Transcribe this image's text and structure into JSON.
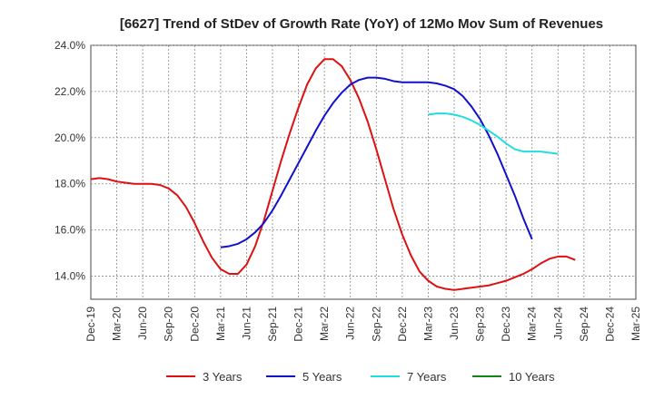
{
  "chart_data": {
    "type": "line",
    "title": "[6627]  Trend of StDev of Growth Rate (YoY) of 12Mo Mov Sum of Revenues",
    "xlabel": "",
    "ylabel": "",
    "ylim": [
      13.0,
      24.0
    ],
    "y_ticks": [
      14.0,
      16.0,
      18.0,
      20.0,
      22.0,
      24.0
    ],
    "y_tick_labels": [
      "14.0%",
      "16.0%",
      "18.0%",
      "20.0%",
      "22.0%",
      "24.0%"
    ],
    "x_tick_labels": [
      "Dec-19",
      "Mar-20",
      "Jun-20",
      "Sep-20",
      "Dec-20",
      "Mar-21",
      "Jun-21",
      "Sep-21",
      "Dec-21",
      "Mar-22",
      "Jun-22",
      "Sep-22",
      "Dec-22",
      "Mar-23",
      "Jun-23",
      "Sep-23",
      "Dec-23",
      "Mar-24",
      "Jun-24",
      "Sep-24",
      "Dec-24",
      "Mar-25"
    ],
    "x_start": "Dec-19",
    "x_months": 63,
    "grid": true,
    "legend_position": "bottom",
    "series": [
      {
        "name": "3 Years",
        "color": "#dd1111",
        "points": [
          [
            0,
            18.2
          ],
          [
            1,
            18.25
          ],
          [
            2,
            18.2
          ],
          [
            3,
            18.1
          ],
          [
            4,
            18.05
          ],
          [
            5,
            18.0
          ],
          [
            6,
            18.0
          ],
          [
            7,
            18.0
          ],
          [
            8,
            17.95
          ],
          [
            9,
            17.8
          ],
          [
            10,
            17.5
          ],
          [
            11,
            17.0
          ],
          [
            12,
            16.3
          ],
          [
            13,
            15.5
          ],
          [
            14,
            14.8
          ],
          [
            15,
            14.3
          ],
          [
            16,
            14.1
          ],
          [
            17,
            14.1
          ],
          [
            18,
            14.5
          ],
          [
            19,
            15.3
          ],
          [
            20,
            16.4
          ],
          [
            21,
            17.7
          ],
          [
            22,
            19.0
          ],
          [
            23,
            20.2
          ],
          [
            24,
            21.3
          ],
          [
            25,
            22.3
          ],
          [
            26,
            23.0
          ],
          [
            27,
            23.4
          ],
          [
            28,
            23.4
          ],
          [
            29,
            23.1
          ],
          [
            30,
            22.5
          ],
          [
            31,
            21.7
          ],
          [
            32,
            20.7
          ],
          [
            33,
            19.5
          ],
          [
            34,
            18.2
          ],
          [
            35,
            16.9
          ],
          [
            36,
            15.8
          ],
          [
            37,
            14.9
          ],
          [
            38,
            14.2
          ],
          [
            39,
            13.8
          ],
          [
            40,
            13.55
          ],
          [
            41,
            13.45
          ],
          [
            42,
            13.4
          ],
          [
            43,
            13.45
          ],
          [
            44,
            13.5
          ],
          [
            45,
            13.55
          ],
          [
            46,
            13.6
          ],
          [
            47,
            13.7
          ],
          [
            48,
            13.8
          ],
          [
            49,
            13.95
          ],
          [
            50,
            14.1
          ],
          [
            51,
            14.3
          ],
          [
            52,
            14.55
          ],
          [
            53,
            14.75
          ],
          [
            54,
            14.85
          ],
          [
            55,
            14.85
          ],
          [
            56,
            14.7
          ]
        ]
      },
      {
        "name": "5 Years",
        "color": "#1111cc",
        "points": [
          [
            15,
            15.25
          ],
          [
            16,
            15.3
          ],
          [
            17,
            15.4
          ],
          [
            18,
            15.6
          ],
          [
            19,
            15.9
          ],
          [
            20,
            16.3
          ],
          [
            21,
            16.85
          ],
          [
            22,
            17.5
          ],
          [
            23,
            18.2
          ],
          [
            24,
            18.9
          ],
          [
            25,
            19.6
          ],
          [
            26,
            20.3
          ],
          [
            27,
            20.95
          ],
          [
            28,
            21.5
          ],
          [
            29,
            21.95
          ],
          [
            30,
            22.3
          ],
          [
            31,
            22.5
          ],
          [
            32,
            22.6
          ],
          [
            33,
            22.6
          ],
          [
            34,
            22.55
          ],
          [
            35,
            22.45
          ],
          [
            36,
            22.4
          ],
          [
            37,
            22.4
          ],
          [
            38,
            22.4
          ],
          [
            39,
            22.4
          ],
          [
            40,
            22.35
          ],
          [
            41,
            22.25
          ],
          [
            42,
            22.1
          ],
          [
            43,
            21.8
          ],
          [
            44,
            21.35
          ],
          [
            45,
            20.8
          ],
          [
            46,
            20.1
          ],
          [
            47,
            19.3
          ],
          [
            48,
            18.4
          ],
          [
            49,
            17.5
          ],
          [
            50,
            16.5
          ],
          [
            51,
            15.6
          ]
        ]
      },
      {
        "name": "7 Years",
        "color": "#22dddd",
        "points": [
          [
            39,
            21.0
          ],
          [
            40,
            21.05
          ],
          [
            41,
            21.05
          ],
          [
            42,
            21.0
          ],
          [
            43,
            20.9
          ],
          [
            44,
            20.75
          ],
          [
            45,
            20.55
          ],
          [
            46,
            20.3
          ],
          [
            47,
            20.05
          ],
          [
            48,
            19.75
          ],
          [
            49,
            19.5
          ],
          [
            50,
            19.4
          ],
          [
            51,
            19.4
          ],
          [
            52,
            19.4
          ],
          [
            53,
            19.35
          ],
          [
            54,
            19.3
          ]
        ]
      },
      {
        "name": "10 Years",
        "color": "#118811",
        "points": []
      }
    ]
  }
}
